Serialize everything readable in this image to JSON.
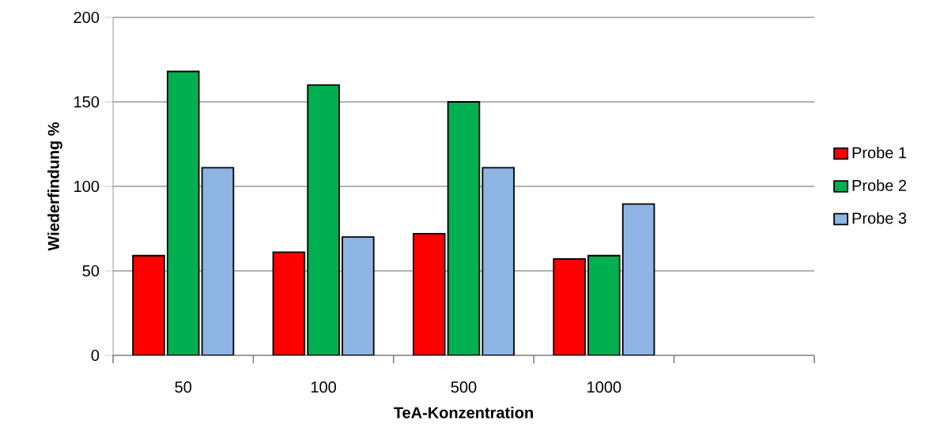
{
  "chart_data": {
    "type": "bar",
    "xlabel": "TeA-Konzentration",
    "ylabel": "Wiederfindung %",
    "categories": [
      "50",
      "100",
      "500",
      "1000",
      null
    ],
    "series": [
      {
        "name": "Probe 1",
        "color": "#ff0000",
        "values": [
          59,
          61,
          72,
          57,
          null
        ]
      },
      {
        "name": "Probe 2",
        "color": "#00b050",
        "values": [
          168,
          160,
          150,
          59,
          null
        ]
      },
      {
        "name": "Probe 3",
        "color": "#8eb4e3",
        "values": [
          111,
          70,
          111,
          89.5,
          null
        ]
      }
    ],
    "ylim": [
      0,
      200
    ],
    "yticks": [
      0,
      50,
      100,
      150,
      200
    ],
    "grid": "y",
    "legend": "right"
  }
}
